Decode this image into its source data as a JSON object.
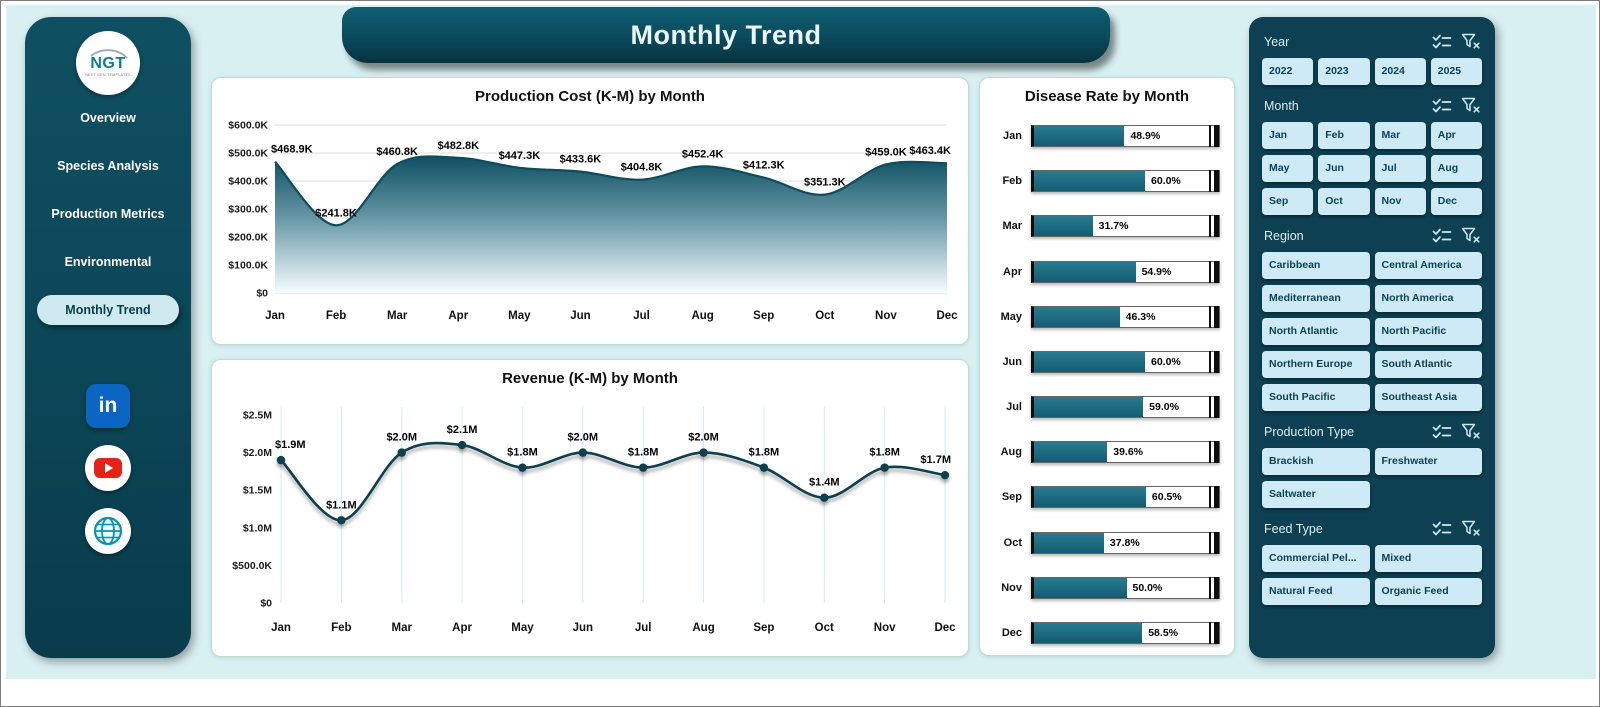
{
  "header": {
    "title": "Monthly Trend"
  },
  "sidebar": {
    "logo_text": "NGT",
    "logo_subtext": "NEXT GEN TEMPLATES",
    "items": [
      {
        "label": "Overview",
        "active": false
      },
      {
        "label": "Species Analysis",
        "active": false
      },
      {
        "label": "Production Metrics",
        "active": false
      },
      {
        "label": "Environmental",
        "active": false
      },
      {
        "label": "Monthly Trend",
        "active": true
      }
    ],
    "social": [
      {
        "name": "linkedin",
        "label": "in"
      },
      {
        "name": "youtube"
      },
      {
        "name": "website"
      }
    ]
  },
  "chart_data": [
    {
      "type": "area",
      "title": "Production Cost (K-M) by Month",
      "categories": [
        "Jan",
        "Feb",
        "Mar",
        "Apr",
        "May",
        "Jun",
        "Jul",
        "Aug",
        "Sep",
        "Oct",
        "Nov",
        "Dec"
      ],
      "values": [
        468.9,
        241.8,
        460.8,
        482.8,
        447.3,
        433.6,
        404.8,
        452.4,
        412.3,
        351.3,
        459.0,
        463.4
      ],
      "labels": [
        "$468.9K",
        "$241.8K",
        "$460.8K",
        "$482.8K",
        "$447.3K",
        "$433.6K",
        "$404.8K",
        "$452.4K",
        "$412.3K",
        "$351.3K",
        "$459.0K",
        "$463.4K"
      ],
      "unit": "K",
      "y_ticks": [
        "$0",
        "$100.0K",
        "$200.0K",
        "$300.0K",
        "$400.0K",
        "$500.0K",
        "$600.0K"
      ],
      "ylim": [
        0,
        600
      ],
      "grid": "horizontal",
      "xlabel": "",
      "ylabel": ""
    },
    {
      "type": "line",
      "title": "Revenue (K-M) by Month",
      "categories": [
        "Jan",
        "Feb",
        "Mar",
        "Apr",
        "May",
        "Jun",
        "Jul",
        "Aug",
        "Sep",
        "Oct",
        "Nov",
        "Dec"
      ],
      "values": [
        1.9,
        1.1,
        2.0,
        2.1,
        1.8,
        2.0,
        1.8,
        2.0,
        1.8,
        1.4,
        1.8,
        1.7
      ],
      "labels": [
        "$1.9M",
        "$1.1M",
        "$2.0M",
        "$2.1M",
        "$1.8M",
        "$2.0M",
        "$1.8M",
        "$2.0M",
        "$1.8M",
        "$1.4M",
        "$1.8M",
        "$1.7M"
      ],
      "unit": "M",
      "y_ticks": [
        "$0",
        "$500.0K",
        "$1.0M",
        "$1.5M",
        "$2.0M",
        "$2.5M"
      ],
      "ylim": [
        0,
        2.5
      ],
      "grid": "vertical",
      "xlabel": "",
      "ylabel": ""
    },
    {
      "type": "bar",
      "orientation": "horizontal",
      "title": "Disease Rate by Month",
      "categories": [
        "Jan",
        "Feb",
        "Mar",
        "Apr",
        "May",
        "Jun",
        "Jul",
        "Aug",
        "Sep",
        "Oct",
        "Nov",
        "Dec"
      ],
      "values": [
        48.9,
        60.0,
        31.7,
        54.9,
        46.3,
        60.0,
        59.0,
        39.6,
        60.5,
        37.8,
        50.0,
        58.5
      ],
      "labels": [
        "48.9%",
        "60.0%",
        "31.7%",
        "54.9%",
        "46.3%",
        "60.0%",
        "59.0%",
        "39.6%",
        "60.5%",
        "37.8%",
        "50.0%",
        "58.5%"
      ],
      "xlim": [
        0,
        100
      ]
    }
  ],
  "filters": {
    "sections": [
      {
        "title": "Year",
        "columns": 4,
        "options": [
          "2022",
          "2023",
          "2024",
          "2025"
        ]
      },
      {
        "title": "Month",
        "columns": 4,
        "options": [
          "Jan",
          "Feb",
          "Mar",
          "Apr",
          "May",
          "Jun",
          "Jul",
          "Aug",
          "Sep",
          "Oct",
          "Nov",
          "Dec"
        ]
      },
      {
        "title": "Region",
        "columns": 2,
        "options": [
          "Caribbean",
          "Central America",
          "Mediterranean",
          "North America",
          "North Atlantic",
          "North Pacific",
          "Northern Europe",
          "South Atlantic",
          "South Pacific",
          "Southeast Asia"
        ]
      },
      {
        "title": "Production Type",
        "columns": 2,
        "options": [
          "Brackish",
          "Freshwater",
          "Saltwater"
        ]
      },
      {
        "title": "Feed Type",
        "columns": 2,
        "options": [
          "Commercial Pel...",
          "Mixed",
          "Natural Feed",
          "Organic Feed"
        ]
      }
    ]
  },
  "colors": {
    "page_bg": "#d9f0f3",
    "panel_teal": "#0d4c5e",
    "button_fill": "#cdeaf6",
    "bar_fill": "#1b6a80",
    "line_color": "#0d4c5e",
    "linkedin_blue": "#0a66c2",
    "youtube_red": "#e62117"
  }
}
